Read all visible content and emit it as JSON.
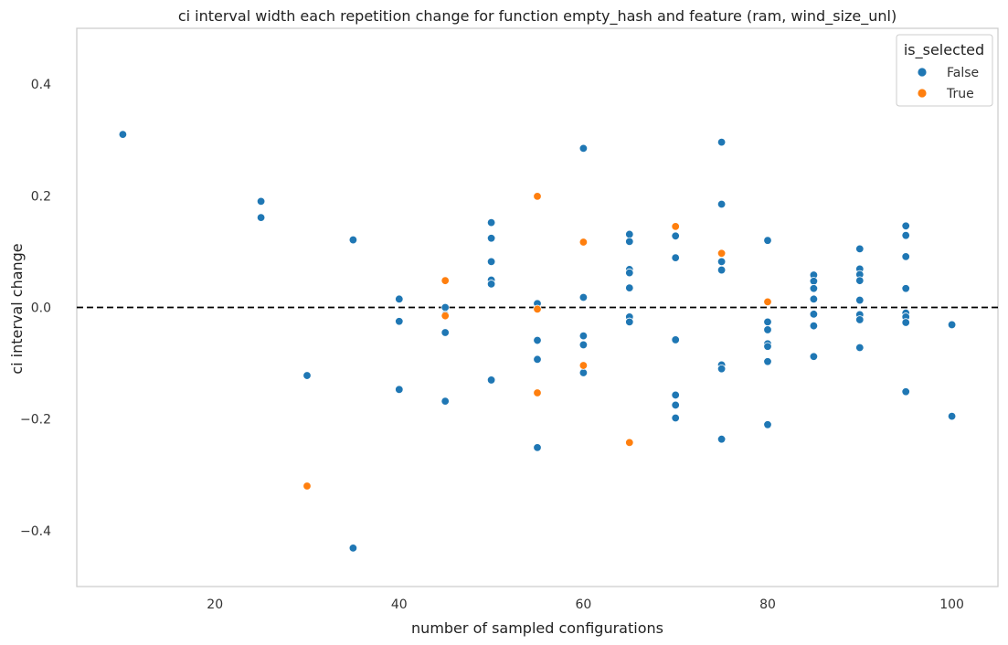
{
  "chart_data": {
    "type": "scatter",
    "title": "ci interval width each repetition change for function empty_hash and feature (ram, wind_size_unl)",
    "xlabel": "number of sampled configurations",
    "ylabel": "ci interval change",
    "xlim": [
      5,
      105
    ],
    "ylim": [
      -0.5,
      0.5
    ],
    "xticks": [
      20,
      40,
      60,
      80,
      100
    ],
    "yticks": [
      -0.4,
      -0.2,
      0.0,
      0.2,
      0.4
    ],
    "ytick_labels": [
      "−0.4",
      "−0.2",
      "0.0",
      "0.2",
      "0.4"
    ],
    "grid": false,
    "reference_line": {
      "y": 0.0,
      "style": "dashed",
      "color": "#000000"
    },
    "legend": {
      "title": "is_selected",
      "position": "top-right"
    },
    "series": [
      {
        "name": "False",
        "color": "#1f77b4",
        "points": [
          [
            10,
            0.31
          ],
          [
            25,
            0.19
          ],
          [
            25,
            0.161
          ],
          [
            30,
            -0.122
          ],
          [
            35,
            0.121
          ],
          [
            35,
            -0.431
          ],
          [
            40,
            0.015
          ],
          [
            40,
            -0.025
          ],
          [
            40,
            -0.147
          ],
          [
            45,
            0.0
          ],
          [
            45,
            -0.013
          ],
          [
            45,
            -0.045
          ],
          [
            45,
            -0.168
          ],
          [
            50,
            0.152
          ],
          [
            50,
            0.124
          ],
          [
            50,
            0.082
          ],
          [
            50,
            0.049
          ],
          [
            50,
            0.042
          ],
          [
            50,
            -0.13
          ],
          [
            55,
            0.007
          ],
          [
            55,
            -0.059
          ],
          [
            55,
            -0.093
          ],
          [
            55,
            -0.251
          ],
          [
            60,
            0.285
          ],
          [
            60,
            0.018
          ],
          [
            60,
            -0.051
          ],
          [
            60,
            -0.067
          ],
          [
            60,
            -0.117
          ],
          [
            65,
            0.131
          ],
          [
            65,
            0.118
          ],
          [
            65,
            0.068
          ],
          [
            65,
            0.062
          ],
          [
            65,
            0.035
          ],
          [
            65,
            -0.017
          ],
          [
            65,
            -0.026
          ],
          [
            70,
            0.128
          ],
          [
            70,
            0.089
          ],
          [
            70,
            -0.058
          ],
          [
            70,
            -0.157
          ],
          [
            70,
            -0.175
          ],
          [
            70,
            -0.198
          ],
          [
            75,
            0.296
          ],
          [
            75,
            0.185
          ],
          [
            75,
            0.082
          ],
          [
            75,
            0.067
          ],
          [
            75,
            -0.103
          ],
          [
            75,
            -0.11
          ],
          [
            75,
            -0.236
          ],
          [
            80,
            0.12
          ],
          [
            80,
            -0.026
          ],
          [
            80,
            -0.04
          ],
          [
            80,
            -0.065
          ],
          [
            80,
            -0.07
          ],
          [
            80,
            -0.097
          ],
          [
            80,
            -0.21
          ],
          [
            85,
            0.058
          ],
          [
            85,
            0.047
          ],
          [
            85,
            0.034
          ],
          [
            85,
            0.015
          ],
          [
            85,
            -0.012
          ],
          [
            85,
            -0.033
          ],
          [
            85,
            -0.088
          ],
          [
            90,
            0.105
          ],
          [
            90,
            0.069
          ],
          [
            90,
            0.059
          ],
          [
            90,
            0.048
          ],
          [
            90,
            0.013
          ],
          [
            90,
            -0.013
          ],
          [
            90,
            -0.022
          ],
          [
            90,
            -0.072
          ],
          [
            95,
            0.146
          ],
          [
            95,
            0.129
          ],
          [
            95,
            0.091
          ],
          [
            95,
            0.034
          ],
          [
            95,
            -0.01
          ],
          [
            95,
            -0.017
          ],
          [
            95,
            -0.027
          ],
          [
            95,
            -0.151
          ],
          [
            100,
            -0.031
          ],
          [
            100,
            -0.195
          ]
        ]
      },
      {
        "name": "True",
        "color": "#ff7f0e",
        "points": [
          [
            30,
            -0.32
          ],
          [
            45,
            0.048
          ],
          [
            45,
            -0.015
          ],
          [
            55,
            0.199
          ],
          [
            55,
            -0.003
          ],
          [
            55,
            -0.153
          ],
          [
            60,
            0.117
          ],
          [
            60,
            -0.104
          ],
          [
            65,
            -0.242
          ],
          [
            70,
            0.145
          ],
          [
            75,
            0.097
          ],
          [
            80,
            0.01
          ]
        ]
      }
    ]
  }
}
